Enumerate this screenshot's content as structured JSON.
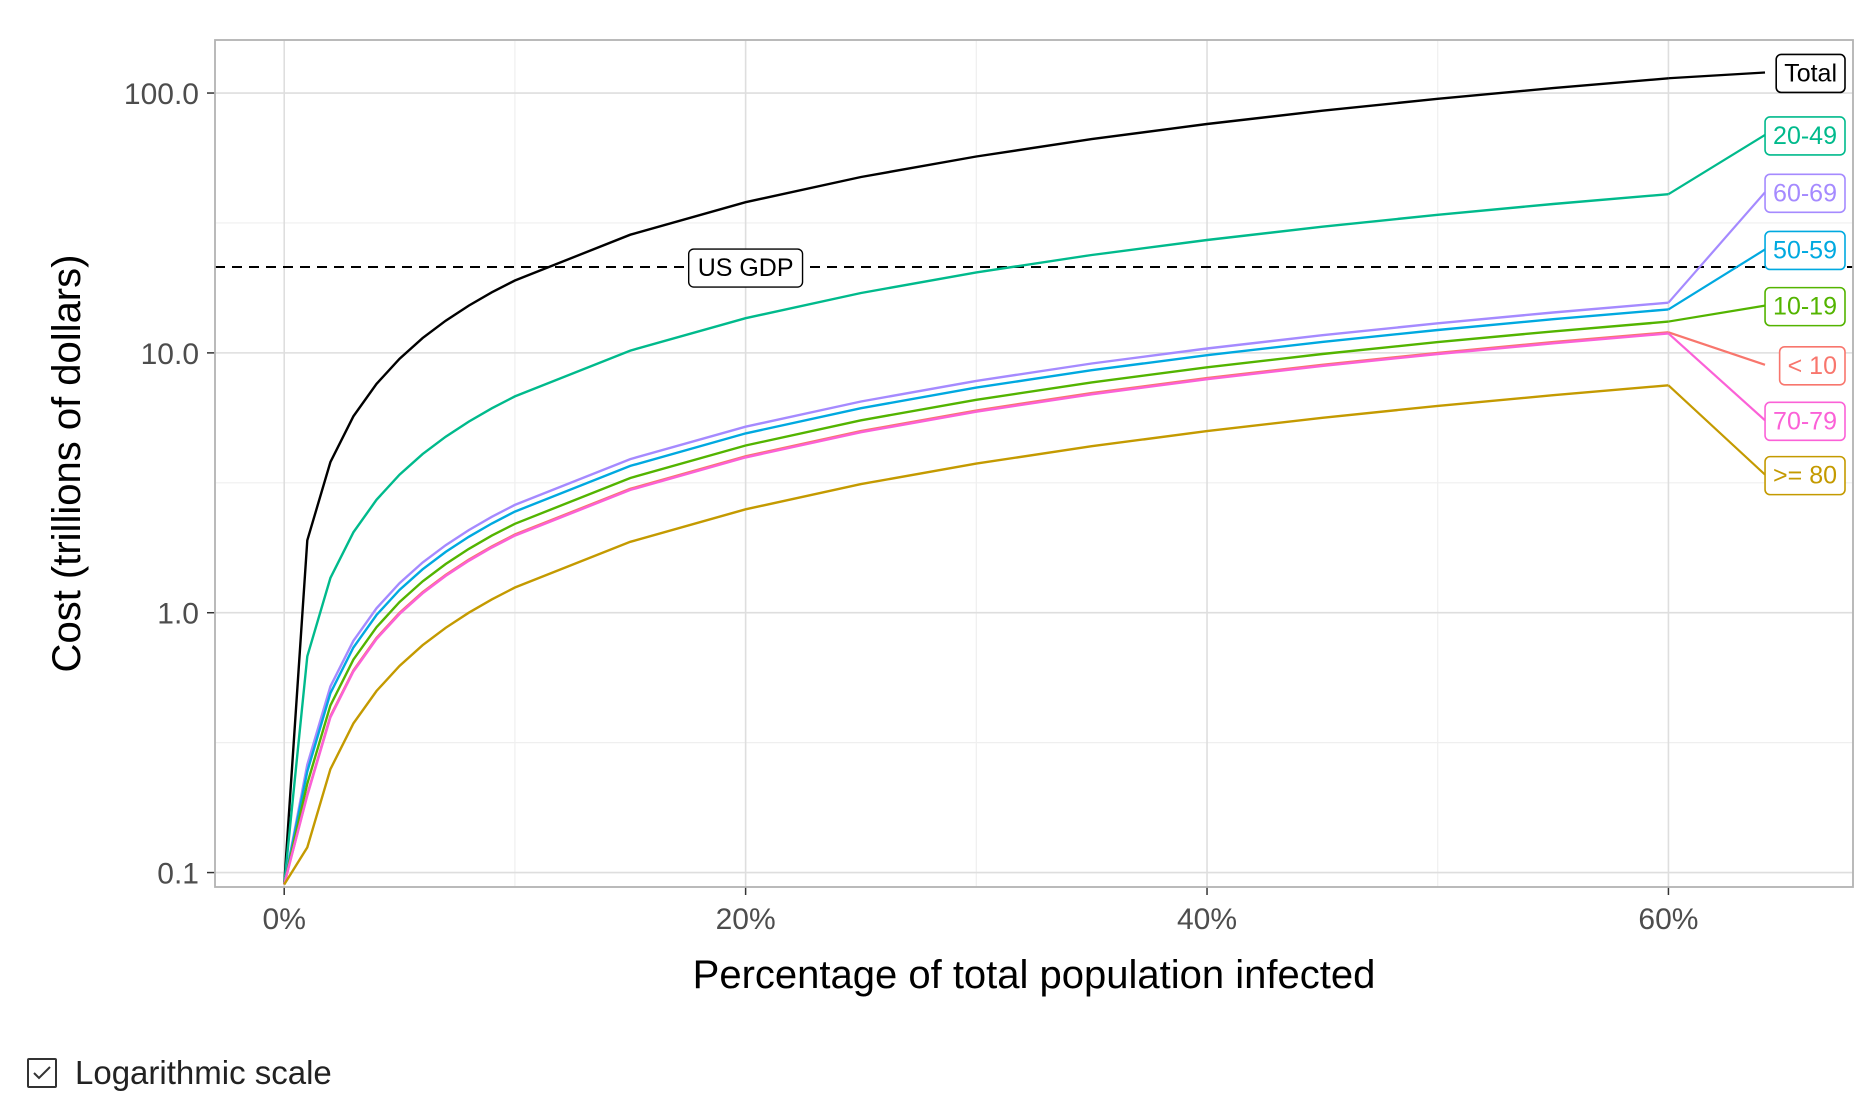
{
  "chart_data": {
    "type": "line",
    "xlabel": "Percentage of total population infected",
    "ylabel": "Cost (trillions of dollars)",
    "x_scale": "linear",
    "y_scale": "log",
    "xlim": [
      -0.03,
      0.68
    ],
    "ylim": [
      0.088,
      160
    ],
    "x_ticks": [
      {
        "value": 0.0,
        "label": "0%"
      },
      {
        "value": 0.2,
        "label": "20%"
      },
      {
        "value": 0.4,
        "label": "40%"
      },
      {
        "value": 0.6,
        "label": "60%"
      }
    ],
    "y_ticks": [
      {
        "value": 0.1,
        "label": "0.1"
      },
      {
        "value": 1.0,
        "label": "1.0"
      },
      {
        "value": 10.0,
        "label": "10.0"
      },
      {
        "value": 100.0,
        "label": "100.0"
      }
    ],
    "grid": true,
    "legend": "direct labels at right end of lines",
    "x": [
      0.0,
      0.01,
      0.02,
      0.03,
      0.04,
      0.05,
      0.06,
      0.07,
      0.08,
      0.09,
      0.1,
      0.15,
      0.2,
      0.25,
      0.3,
      0.35,
      0.4,
      0.45,
      0.5,
      0.55,
      0.6
    ],
    "series": [
      {
        "name": "Total",
        "color": "#000000",
        "label_y": 120,
        "values": [
          0.09,
          1.9,
          3.8,
          5.7,
          7.6,
          9.5,
          11.4,
          13.3,
          15.2,
          17.1,
          19.0,
          28.5,
          38.0,
          47.5,
          57.0,
          66.5,
          76.0,
          85.5,
          95.0,
          104.5,
          114.0
        ]
      },
      {
        "name": "20-49",
        "color": "#00BA8C",
        "label_y": 69,
        "values": [
          0.09,
          0.68,
          1.36,
          2.04,
          2.72,
          3.4,
          4.08,
          4.76,
          5.44,
          6.12,
          6.8,
          10.2,
          13.6,
          17.0,
          20.4,
          23.8,
          27.2,
          30.6,
          34.0,
          37.4,
          40.8
        ]
      },
      {
        "name": "60-69",
        "color": "#A58AFF",
        "label_y": 41.5,
        "values": [
          0.09,
          0.26,
          0.52,
          0.78,
          1.04,
          1.3,
          1.56,
          1.82,
          2.08,
          2.34,
          2.6,
          3.9,
          5.2,
          6.5,
          7.8,
          9.1,
          10.4,
          11.7,
          13.0,
          14.3,
          15.6
        ]
      },
      {
        "name": "50-59",
        "color": "#00A9E0",
        "label_y": 25.0,
        "values": [
          0.09,
          0.245,
          0.49,
          0.735,
          0.98,
          1.225,
          1.47,
          1.715,
          1.96,
          2.205,
          2.45,
          3.675,
          4.9,
          6.125,
          7.35,
          8.575,
          9.8,
          11.025,
          12.25,
          13.475,
          14.7
        ]
      },
      {
        "name": "10-19",
        "color": "#53B400",
        "label_y": 15.2,
        "values": [
          0.09,
          0.22,
          0.44,
          0.66,
          0.88,
          1.1,
          1.32,
          1.54,
          1.76,
          1.98,
          2.2,
          3.3,
          4.4,
          5.5,
          6.6,
          7.7,
          8.8,
          9.9,
          11.0,
          12.1,
          13.2
        ]
      },
      {
        "name": "< 10",
        "color": "#F8766D",
        "label_y": 9.0,
        "values": [
          0.09,
          0.2,
          0.4,
          0.6,
          0.8,
          1.0,
          1.2,
          1.4,
          1.6,
          1.8,
          2.0,
          3.0,
          4.0,
          5.0,
          6.0,
          7.0,
          8.0,
          9.0,
          10.0,
          11.0,
          12.0
        ]
      },
      {
        "name": "70-79",
        "color": "#FB61D7",
        "label_y": 5.5,
        "values": [
          0.09,
          0.198,
          0.396,
          0.594,
          0.792,
          0.99,
          1.188,
          1.386,
          1.584,
          1.782,
          1.98,
          2.97,
          3.96,
          4.95,
          5.94,
          6.93,
          7.92,
          8.91,
          9.9,
          10.89,
          11.88
        ]
      },
      {
        "name": ">= 80",
        "color": "#C49A00",
        "label_y": 3.4,
        "values": [
          0.09,
          0.125,
          0.25,
          0.375,
          0.5,
          0.625,
          0.75,
          0.875,
          1.0,
          1.125,
          1.25,
          1.875,
          2.5,
          3.125,
          3.75,
          4.375,
          5.0,
          5.625,
          6.25,
          6.875,
          7.5
        ]
      }
    ],
    "reference_lines": [
      {
        "label": "US GDP",
        "y": 21.4,
        "label_x": 0.2,
        "style": "dashed",
        "color": "#000000"
      }
    ]
  },
  "controls": {
    "log_scale": {
      "label": "Logarithmic scale",
      "checked": true
    }
  }
}
